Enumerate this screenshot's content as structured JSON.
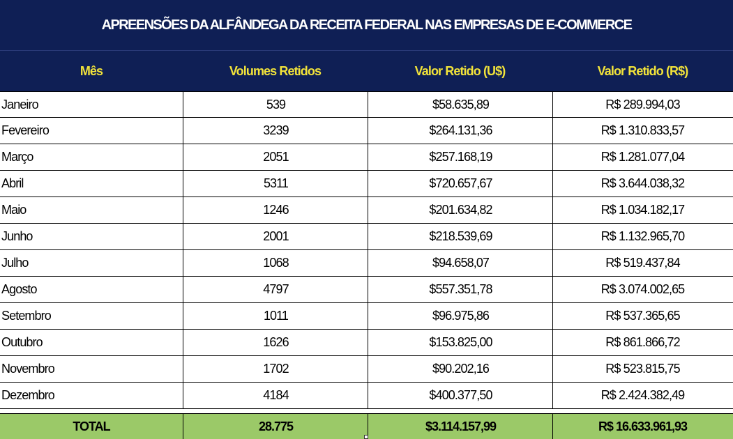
{
  "title": "APREENSÕES DA ALFÂNDEGA DA RECEITA FEDERAL NAS EMPRESAS DE  E-COMMERCE",
  "headers": [
    "Mês",
    "Volumes Retidos",
    "Valor Retido (U$)",
    "Valor Retido (R$)"
  ],
  "rows": [
    {
      "mes": "Janeiro",
      "volumes": "539",
      "usd": "$58.635,89",
      "brl": "R$ 289.994,03"
    },
    {
      "mes": "Fevereiro",
      "volumes": "3239",
      "usd": "$264.131,36",
      "brl": "R$ 1.310.833,57"
    },
    {
      "mes": "Março",
      "volumes": "2051",
      "usd": "$257.168,19",
      "brl": "R$ 1.281.077,04"
    },
    {
      "mes": "Abril",
      "volumes": "5311",
      "usd": "$720.657,67",
      "brl": "R$ 3.644.038,32"
    },
    {
      "mes": "Maio",
      "volumes": "1246",
      "usd": "$201.634,82",
      "brl": "R$ 1.034.182,17"
    },
    {
      "mes": "Junho",
      "volumes": "2001",
      "usd": "$218.539,69",
      "brl": "R$ 1.132.965,70"
    },
    {
      "mes": "Julho",
      "volumes": "1068",
      "usd": "$94.658,07",
      "brl": "R$ 519.437,84"
    },
    {
      "mes": "Agosto",
      "volumes": "4797",
      "usd": "$557.351,78",
      "brl": "R$ 3.074.002,65"
    },
    {
      "mes": "Setembro",
      "volumes": "1011",
      "usd": "$96.975,86",
      "brl": "R$ 537.365,65"
    },
    {
      "mes": "Outubro",
      "volumes": "1626",
      "usd": "$153.825,00",
      "brl": "R$ 861.866,72"
    },
    {
      "mes": "Novembro",
      "volumes": "1702",
      "usd": "$90.202,16",
      "brl": "R$ 523.815,75"
    },
    {
      "mes": "Dezembro",
      "volumes": "4184",
      "usd": "$400.377,50",
      "brl": "R$ 2.424.382,49"
    }
  ],
  "total": {
    "label": "TOTAL",
    "volumes": "28.775",
    "usd": "$3.114.157,99",
    "brl": "R$ 16.633.961,93"
  },
  "colors": {
    "header_bg": "#0f1f55",
    "header_text": "#f2e33a",
    "title_text": "#ffffff",
    "total_bg": "#9bc968"
  }
}
